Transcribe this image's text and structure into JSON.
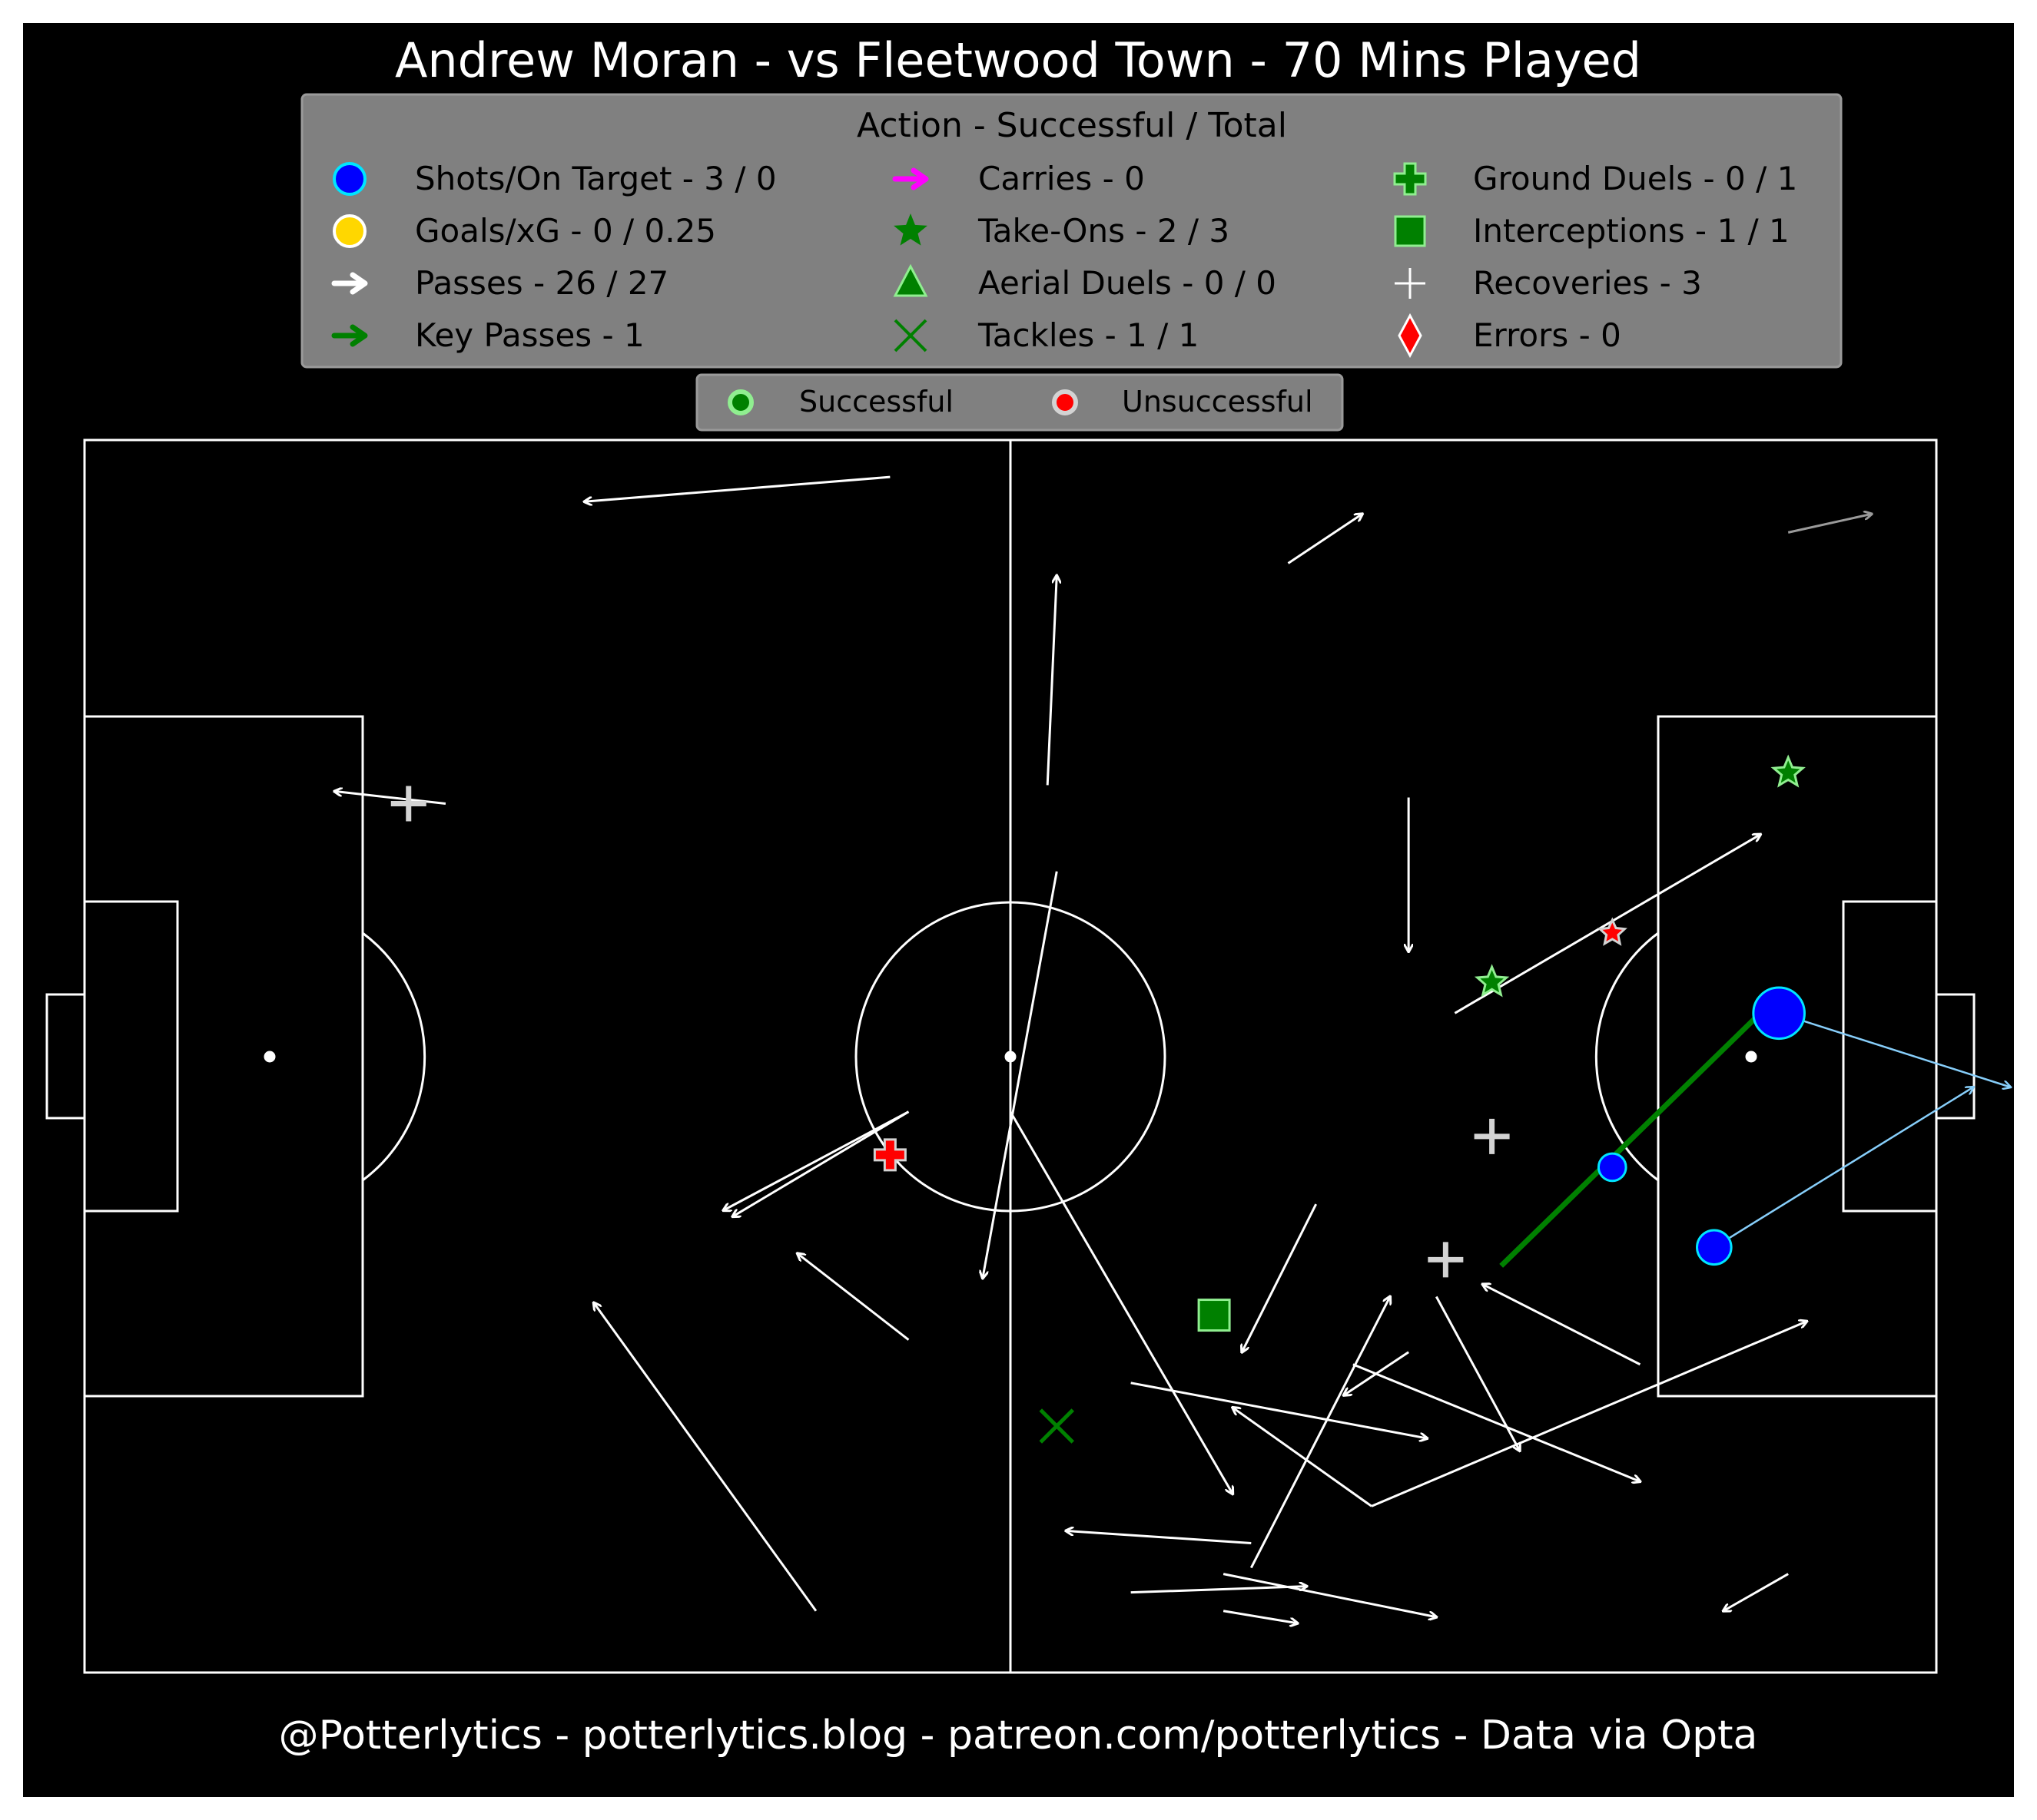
{
  "title": "Andrew Moran - vs Fleetwood Town - 70 Mins Played",
  "footer": "@Potterlytics - potterlytics.blog - patreon.com/potterlytics - Data via Opta",
  "legend": {
    "title": "Action - Successful / Total",
    "items": [
      {
        "label": "Shots/On Target - 3 / 0",
        "icon": "circle-icon",
        "color": "#0000ff",
        "edge": "#00e5ff"
      },
      {
        "label": "Goals/xG - 0 / 0.25",
        "icon": "circle-icon",
        "color": "#ffd700",
        "edge": "#ffffff"
      },
      {
        "label": "Passes - 26 / 27",
        "icon": "arrow-icon",
        "color": "#ffffff"
      },
      {
        "label": "Key Passes - 1",
        "icon": "arrow-icon",
        "color": "#008000"
      },
      {
        "label": "Carries - 0",
        "icon": "arrow-icon",
        "color": "#ff00ff"
      },
      {
        "label": "Take-Ons - 2 / 3",
        "icon": "star-icon",
        "color": "#008000"
      },
      {
        "label": "Aerial Duels - 0 / 0",
        "icon": "triangle-icon",
        "color": "#008000"
      },
      {
        "label": "Tackles - 1 / 1",
        "icon": "x-icon",
        "color": "#008000"
      },
      {
        "label": "Ground Duels - 0 / 1",
        "icon": "plus-icon",
        "color": "#008000"
      },
      {
        "label": "Interceptions - 1 / 1",
        "icon": "square-icon",
        "color": "#008000"
      },
      {
        "label": "Recoveries - 3",
        "icon": "cross-icon",
        "color": "#ffffff"
      },
      {
        "label": "Errors - 0",
        "icon": "diamond-icon",
        "color": "#ff0000"
      }
    ]
  },
  "outcome_legend": {
    "successful": "Successful",
    "unsuccessful": "Unsuccessful",
    "successful_color": "#008000",
    "unsuccessful_color": "#ff0000"
  },
  "chart_data": {
    "type": "scatter",
    "xlim": [
      0,
      100
    ],
    "ylim": [
      0,
      100
    ],
    "passes": [
      {
        "x1": 43.5,
        "y1": 97.0,
        "x2": 27.0,
        "y2": 95.0,
        "success": true
      },
      {
        "x1": 65.0,
        "y1": 90.0,
        "x2": 69.0,
        "y2": 94.0,
        "success": true
      },
      {
        "x1": 92.0,
        "y1": 92.5,
        "x2": 96.5,
        "y2": 94.0,
        "success": false
      },
      {
        "x1": 52.0,
        "y1": 72.0,
        "x2": 52.5,
        "y2": 89.0,
        "success": true
      },
      {
        "x1": 19.5,
        "y1": 70.5,
        "x2": 13.5,
        "y2": 71.5,
        "success": true
      },
      {
        "x1": 71.5,
        "y1": 71.0,
        "x2": 71.5,
        "y2": 58.5,
        "success": true
      },
      {
        "x1": 74.0,
        "y1": 53.5,
        "x2": 90.5,
        "y2": 68.0,
        "success": true
      },
      {
        "x1": 52.5,
        "y1": 65.0,
        "x2": 48.5,
        "y2": 32.0,
        "success": true
      },
      {
        "x1": 44.5,
        "y1": 45.5,
        "x2": 34.5,
        "y2": 37.5,
        "success": true
      },
      {
        "x1": 44.5,
        "y1": 27.0,
        "x2": 38.5,
        "y2": 34.0,
        "success": true
      },
      {
        "x1": 39.5,
        "y1": 5.0,
        "x2": 27.5,
        "y2": 30.0,
        "success": true
      },
      {
        "x1": 50.0,
        "y1": 45.5,
        "x2": 62.0,
        "y2": 14.5,
        "success": true
      },
      {
        "x1": 66.5,
        "y1": 38.0,
        "x2": 62.5,
        "y2": 26.0,
        "success": true
      },
      {
        "x1": 84.0,
        "y1": 25.0,
        "x2": 75.5,
        "y2": 31.5,
        "success": true
      },
      {
        "x1": 73.0,
        "y1": 30.5,
        "x2": 77.5,
        "y2": 18.0,
        "success": true
      },
      {
        "x1": 71.5,
        "y1": 26.0,
        "x2": 68.0,
        "y2": 22.5,
        "success": true
      },
      {
        "x1": 56.5,
        "y1": 23.5,
        "x2": 72.5,
        "y2": 19.0,
        "success": true
      },
      {
        "x1": 68.5,
        "y1": 25.0,
        "x2": 84.0,
        "y2": 15.5,
        "success": true
      },
      {
        "x1": 69.5,
        "y1": 13.5,
        "x2": 62.0,
        "y2": 21.5,
        "success": true
      },
      {
        "x1": 69.5,
        "y1": 13.5,
        "x2": 93.0,
        "y2": 28.5,
        "success": true
      },
      {
        "x1": 63.0,
        "y1": 10.5,
        "x2": 53.0,
        "y2": 11.5,
        "success": true
      },
      {
        "x1": 63.0,
        "y1": 8.5,
        "x2": 70.5,
        "y2": 30.5,
        "success": true
      },
      {
        "x1": 56.5,
        "y1": 6.5,
        "x2": 66.0,
        "y2": 7.0,
        "success": true
      },
      {
        "x1": 61.5,
        "y1": 8.0,
        "x2": 73.0,
        "y2": 4.5,
        "success": true
      },
      {
        "x1": 61.5,
        "y1": 5.0,
        "x2": 65.5,
        "y2": 4.0,
        "success": true
      },
      {
        "x1": 92.0,
        "y1": 8.0,
        "x2": 88.5,
        "y2": 5.0,
        "success": true
      },
      {
        "x1": 44.5,
        "y1": 45.5,
        "x2": 35.0,
        "y2": 37.0,
        "success": true
      }
    ],
    "key_passes": [
      {
        "x1": 76.5,
        "y1": 33.0,
        "x2": 90.5,
        "y2": 53.5
      }
    ],
    "shots": [
      {
        "x": 91.5,
        "y": 53.5,
        "xg": 0.18,
        "x2": 104.0,
        "y2": 47.5
      },
      {
        "x": 88.0,
        "y": 34.5,
        "xg": 0.05,
        "x2": 102.0,
        "y2": 47.5
      },
      {
        "x": 82.5,
        "y": 41.0,
        "xg": 0.02
      }
    ],
    "take_ons": [
      {
        "x": 92.0,
        "y": 73.0,
        "success": true
      },
      {
        "x": 76.0,
        "y": 56.0,
        "success": true
      },
      {
        "x": 82.5,
        "y": 60.0,
        "success": false
      }
    ],
    "ground_duels": [
      {
        "x": 43.5,
        "y": 42.0,
        "success": false
      }
    ],
    "tackles": [
      {
        "x": 52.5,
        "y": 20.0,
        "success": true
      }
    ],
    "interceptions": [
      {
        "x": 61.0,
        "y": 29.0,
        "success": true
      }
    ],
    "recoveries": [
      {
        "x": 17.5,
        "y": 70.5
      },
      {
        "x": 76.0,
        "y": 43.5
      },
      {
        "x": 73.5,
        "y": 33.5
      }
    ]
  }
}
